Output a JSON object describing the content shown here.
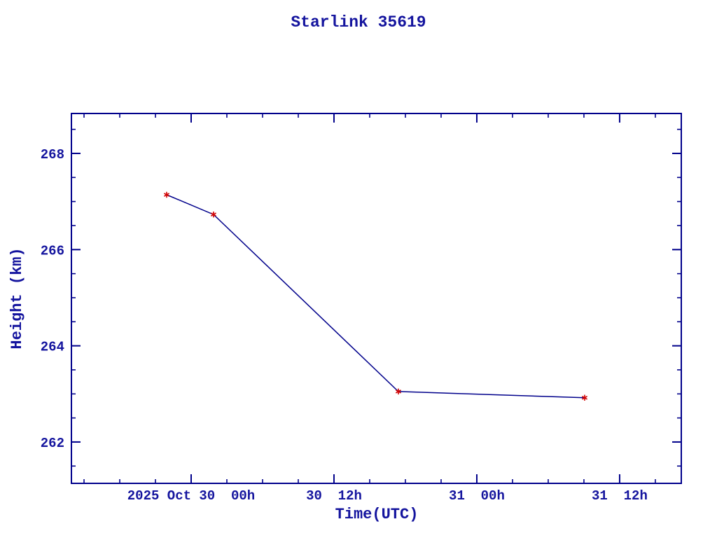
{
  "page": {
    "background": "#ffffff"
  },
  "chart_data": {
    "type": "line",
    "title": "Starlink 35619",
    "xlabel": "Time(UTC)",
    "ylabel": "Height (km)",
    "legend": "none",
    "grid": false,
    "frame": "box with inward ticks on all four sides",
    "colors": {
      "axis": "#00008b",
      "text": "#14149e",
      "line": "#00008b",
      "marker": "#d10000",
      "background": "#ffffff"
    },
    "x_axis": {
      "unit": "hours relative to 2025-10-30 00:00 UTC",
      "min": -10.06,
      "max": 41.18,
      "major_ticks": [
        {
          "value": 0,
          "label": "2025 Oct 30  00h"
        },
        {
          "value": 12,
          "label": "30  12h"
        },
        {
          "value": 24,
          "label": "31  00h"
        },
        {
          "value": 36,
          "label": "31  12h"
        }
      ],
      "minor_ticks": [
        -9,
        -6,
        -3,
        3,
        6,
        9,
        15,
        18,
        21,
        27,
        30,
        33,
        39
      ]
    },
    "y_axis": {
      "unit": "km",
      "min": 261.14,
      "max": 268.83,
      "major_ticks": [
        {
          "value": 262,
          "label": "262"
        },
        {
          "value": 264,
          "label": "264"
        },
        {
          "value": 266,
          "label": "266"
        },
        {
          "value": 268,
          "label": "268"
        }
      ],
      "minor_ticks": [
        261.5,
        262.5,
        263.0,
        263.5,
        264.5,
        265.0,
        265.5,
        266.5,
        267.0,
        267.5,
        268.5
      ]
    },
    "series": [
      {
        "name": "Height",
        "marker": "red asterisk",
        "points": [
          {
            "x": -2.06,
            "y": 267.14,
            "approx_utc": "2025-10-29 21:56"
          },
          {
            "x": 1.88,
            "y": 266.73,
            "approx_utc": "2025-10-30 01:53"
          },
          {
            "x": 17.41,
            "y": 263.05,
            "approx_utc": "2025-10-30 17:25"
          },
          {
            "x": 33.06,
            "y": 262.92,
            "approx_utc": "2025-10-31 09:04"
          }
        ]
      }
    ]
  }
}
